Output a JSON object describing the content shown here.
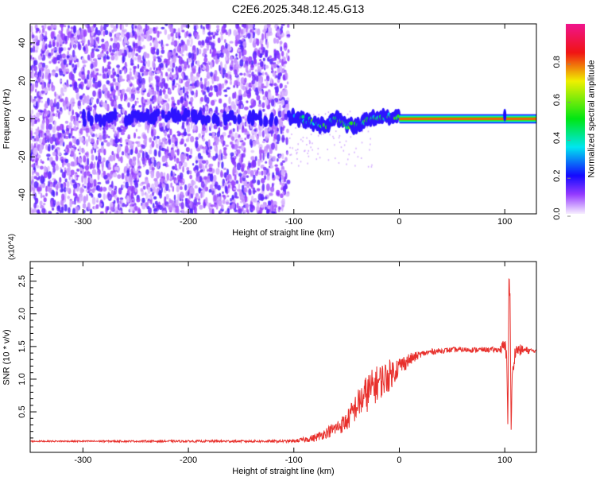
{
  "title": "C2E6.2025.348.12.45.G13",
  "chart_data": [
    {
      "type": "heatmap",
      "title": "C2E6.2025.348.12.45.G13",
      "xlabel": "Height of straight line (km)",
      "ylabel": "Frequency (Hz)",
      "xlim": [
        -350,
        130
      ],
      "ylim": [
        -50,
        50
      ],
      "xticks": [
        -300,
        -200,
        -100,
        0,
        100
      ],
      "xtick_labels": [
        "-300",
        "-200",
        "-100",
        "0",
        "100"
      ],
      "yticks": [
        -40,
        -20,
        0,
        20,
        40
      ],
      "ytick_labels": [
        "-40",
        "-20",
        "0",
        "20",
        "40"
      ],
      "noise_region_x": [
        -350,
        -105
      ],
      "ridge": {
        "x": [
          -290,
          -210,
          -170,
          -150,
          -120,
          -100,
          -80,
          -70,
          -60,
          -50,
          -40,
          -30,
          -10,
          0,
          50,
          95,
          100,
          105,
          130
        ],
        "freq": [
          0,
          2,
          0,
          1,
          0,
          1,
          -2,
          -4,
          1,
          -3,
          -4,
          0,
          1,
          1,
          0,
          0,
          3,
          0,
          0
        ]
      },
      "colorbar": {
        "label": "Normalized spectral amplitude",
        "range": [
          0,
          1
        ],
        "ticks": [
          0.0,
          0.2,
          0.4,
          0.6,
          0.8
        ],
        "tick_labels": [
          "0.0",
          "0.2",
          "0.4",
          "0.6",
          "0.8"
        ]
      }
    },
    {
      "type": "line",
      "xlabel": "Height of straight line (km)",
      "ylabel": "SNR (10 * v/v)",
      "y_multiplier": "(x10^4)",
      "xlim": [
        -350,
        130
      ],
      "ylim": [
        -0.12,
        2.8
      ],
      "xticks": [
        -300,
        -200,
        -100,
        0,
        100
      ],
      "xtick_labels": [
        "-300",
        "-200",
        "-100",
        "0",
        "100"
      ],
      "yticks": [
        0.5,
        1.0,
        1.5,
        2.0,
        2.5
      ],
      "ytick_labels": [
        "0.5",
        "1.0",
        "1.5",
        "2.0",
        "2.5"
      ],
      "color": "#e8302c",
      "series": [
        {
          "name": "SNR",
          "x": [
            -350,
            -100,
            -80,
            -60,
            -50,
            -40,
            -30,
            -20,
            -10,
            0,
            10,
            20,
            30,
            50,
            80,
            95,
            100,
            102,
            103,
            104,
            105,
            106,
            107,
            110,
            130
          ],
          "y": [
            0.05,
            0.05,
            0.1,
            0.25,
            0.35,
            0.6,
            0.8,
            0.95,
            1.05,
            1.2,
            1.3,
            1.38,
            1.42,
            1.45,
            1.45,
            1.45,
            1.5,
            1.3,
            0.3,
            2.7,
            2.2,
            0.2,
            1.0,
            1.45,
            1.43
          ],
          "noise_amplitude": {
            "x": [
              -350,
              -100,
              -70,
              -50,
              -30,
              -10,
              0,
              20,
              40,
              95,
              100,
              130
            ],
            "y": [
              0.01,
              0.02,
              0.08,
              0.15,
              0.3,
              0.25,
              0.15,
              0.05,
              0.04,
              0.04,
              0.15,
              0.02
            ]
          }
        }
      ]
    }
  ]
}
